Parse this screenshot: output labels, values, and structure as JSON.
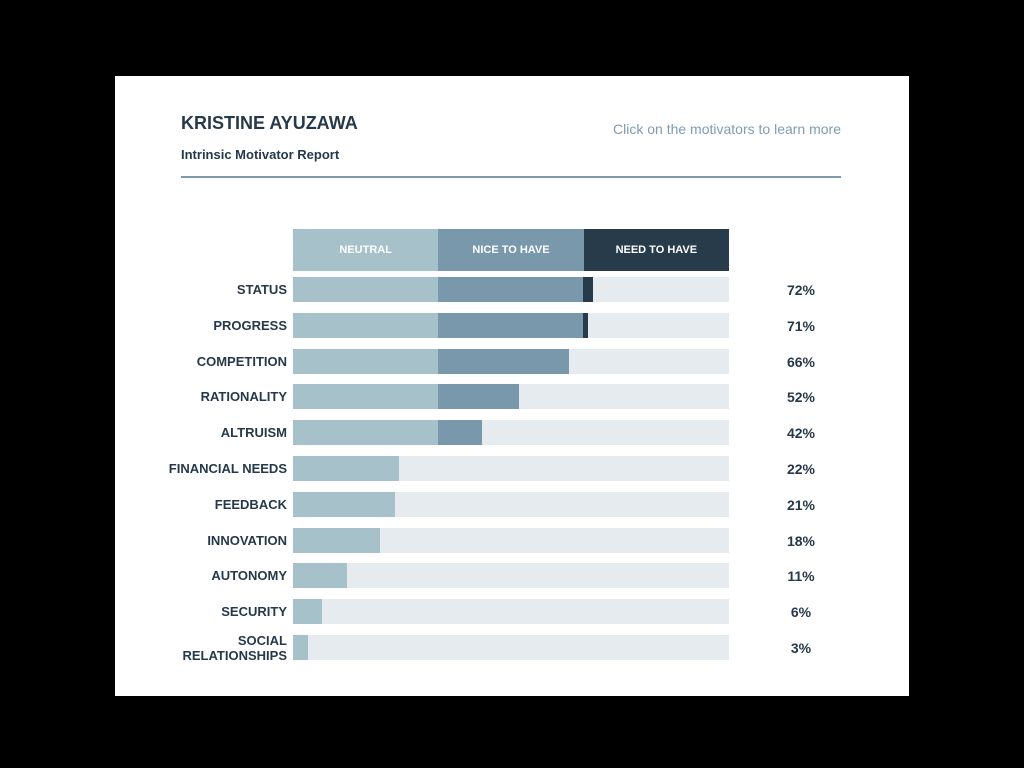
{
  "header": {
    "name": "KRISTINE AYUZAWA",
    "subtitle": "Intrinsic Motivator Report",
    "hint": "Click on the motivators to learn more"
  },
  "colors": {
    "neutral": "#a6c1c9",
    "nice": "#7a98ab",
    "need": "#273b4a",
    "track": "#e5ebef",
    "text": "#26394a"
  },
  "legend": [
    "NEUTRAL",
    "NICE TO HAVE",
    "NEED TO HAVE"
  ],
  "chart_data": {
    "type": "bar",
    "title": "Intrinsic Motivator Report",
    "orientation": "horizontal",
    "bands": [
      "NEUTRAL",
      "NICE TO HAVE",
      "NEED TO HAVE"
    ],
    "categories": [
      "STATUS",
      "PROGRESS",
      "COMPETITION",
      "RATIONALITY",
      "ALTRUISM",
      "FINANCIAL NEEDS",
      "FEEDBACK",
      "INNOVATION",
      "AUTONOMY",
      "SECURITY",
      "SOCIAL RELATIONSHIPS"
    ],
    "values": [
      72,
      71,
      66,
      52,
      42,
      22,
      21,
      18,
      11,
      6,
      3
    ],
    "unit": "%",
    "xlim": [
      0,
      100
    ]
  },
  "rows": [
    {
      "label": "STATUS",
      "pct": "72%",
      "end": 300
    },
    {
      "label": "PROGRESS",
      "pct": "71%",
      "end": 295
    },
    {
      "label": "COMPETITION",
      "pct": "66%",
      "end": 276
    },
    {
      "label": "RATIONALITY",
      "pct": "52%",
      "end": 226
    },
    {
      "label": "ALTRUISM",
      "pct": "42%",
      "end": 189
    },
    {
      "label": "FINANCIAL NEEDS",
      "pct": "22%",
      "end": 106
    },
    {
      "label": "FEEDBACK",
      "pct": "21%",
      "end": 102
    },
    {
      "label": "INNOVATION",
      "pct": "18%",
      "end": 87
    },
    {
      "label": "AUTONOMY",
      "pct": "11%",
      "end": 54
    },
    {
      "label": "SECURITY",
      "pct": "6%",
      "end": 29
    },
    {
      "label": "SOCIAL\nRELATIONSHIPS",
      "pct": "3%",
      "end": 15
    }
  ]
}
